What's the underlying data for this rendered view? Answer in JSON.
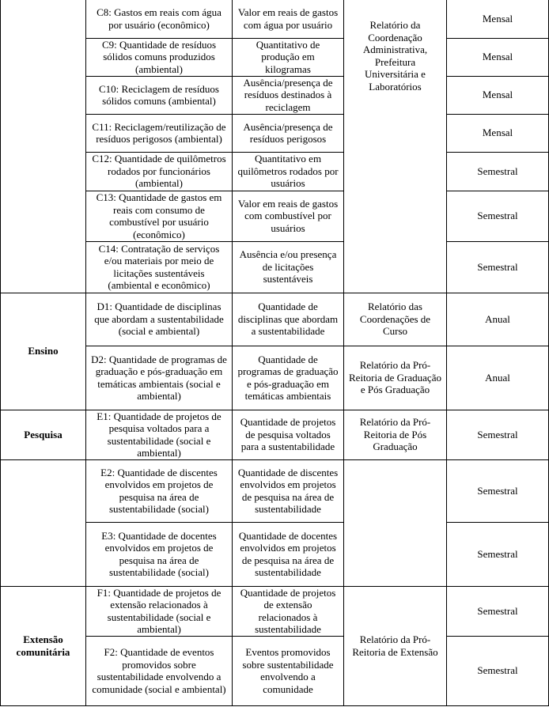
{
  "table": {
    "rows": [
      {
        "area": "",
        "indicator": "C8: Gastos em reais com água por usuário (econômico)",
        "measure": "Valor em reais de gastos com água por usuário",
        "source": "Relatório da Coordenação Administrativa, Prefeitura Universitária e Laboratórios",
        "frequency": "Mensal"
      },
      {
        "indicator": "C9: Quantidade de resíduos sólidos comuns produzidos (ambiental)",
        "measure": "Quantitativo de produção em kilogramas",
        "frequency": "Mensal"
      },
      {
        "indicator": "C10: Reciclagem de resíduos sólidos comuns (ambiental)",
        "measure": "Ausência/presença de resíduos destinados à reciclagem",
        "frequency": "Mensal"
      },
      {
        "indicator": "C11: Reciclagem/reutilização de resíduos perigosos (ambiental)",
        "measure": "Ausência/presença de resíduos perigosos",
        "frequency": "Mensal"
      },
      {
        "indicator": "C12: Quantidade de quilômetros rodados por funcionários (ambiental)",
        "measure": "Quantitativo em quilômetros rodados por usuários",
        "frequency": "Semestral"
      },
      {
        "indicator": "C13: Quantidade de gastos em reais com consumo de combustível por usuário (econômico)",
        "measure": "Valor em reais de gastos com combustível por usuários",
        "frequency": "Semestral"
      },
      {
        "indicator": "C14: Contratação de serviços e/ou materiais por meio de licitações sustentáveis (ambiental e econômico)",
        "measure": "Ausência e/ou presença de licitações sustentáveis",
        "frequency": "Semestral"
      },
      {
        "area": "Ensino",
        "indicator": "D1: Quantidade de disciplinas que abordam a sustentabilidade (social e ambiental)",
        "measure": "Quantidade de disciplinas que abordam a sustentabilidade",
        "source": "Relatório das Coordenações de Curso",
        "frequency": "Anual"
      },
      {
        "indicator": "D2: Quantidade de programas de graduação e pós-graduação em temáticas ambientais (social e ambiental)",
        "measure": "Quantidade de programas de graduação e pós-graduação em temáticas ambientais",
        "source": "Relatório da Pró-Reitoria de Graduação e Pós Graduação",
        "frequency": "Anual"
      },
      {
        "area": "Pesquisa",
        "indicator": "E1: Quantidade de projetos de pesquisa voltados para a sustentabilidade (social e ambiental)",
        "measure": "Quantidade de projetos de pesquisa voltados para a sustentabilidade",
        "source": "Relatório da Pró-Reitoria de Pós Graduação",
        "frequency": "Semestral"
      },
      {
        "area": "",
        "indicator": "E2: Quantidade de discentes envolvidos em projetos de pesquisa na área de sustentabilidade (social)",
        "measure": "Quantidade de discentes envolvidos em projetos de pesquisa na área de sustentabilidade",
        "source": "",
        "frequency": "Semestral"
      },
      {
        "indicator": "E3: Quantidade de docentes envolvidos em projetos de pesquisa na área de sustentabilidade (social)",
        "measure": "Quantidade de docentes envolvidos em projetos de pesquisa na área de sustentabilidade",
        "frequency": "Semestral"
      },
      {
        "area": "Extensão comunitária",
        "indicator": "F1: Quantidade de projetos de extensão relacionados à sustentabilidade (social e ambiental)",
        "measure": "Quantidade de projetos de extensão relacionados à sustentabilidade",
        "source": "Relatório da Pró-Reitoria de Extensão",
        "frequency": "Semestral"
      },
      {
        "indicator": "F2: Quantidade de eventos promovidos sobre sustentabilidade envolvendo a comunidade (social e ambiental)",
        "measure": "Eventos promovidos sobre sustentabilidade envolvendo a comunidade",
        "frequency": "Semestral"
      }
    ]
  }
}
